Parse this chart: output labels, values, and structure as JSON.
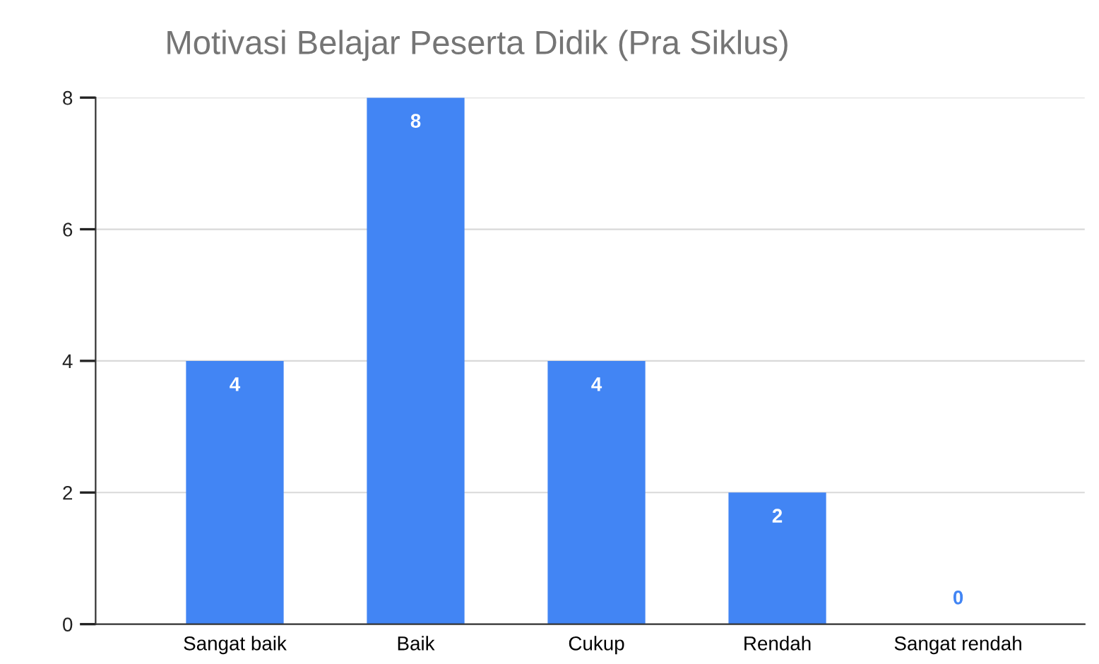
{
  "chart_data": {
    "type": "bar",
    "title": "Motivasi Belajar Peserta Didik (Pra Siklus)",
    "categories": [
      "Sangat baik",
      "Baik",
      "Cukup",
      "Rendah",
      "Sangat rendah"
    ],
    "values": [
      4,
      8,
      4,
      2,
      0
    ],
    "color": "#4285f4",
    "ylim": [
      0,
      8
    ],
    "yticks": [
      0,
      2,
      4,
      6,
      8
    ],
    "grid": "y",
    "data_labels": true
  }
}
